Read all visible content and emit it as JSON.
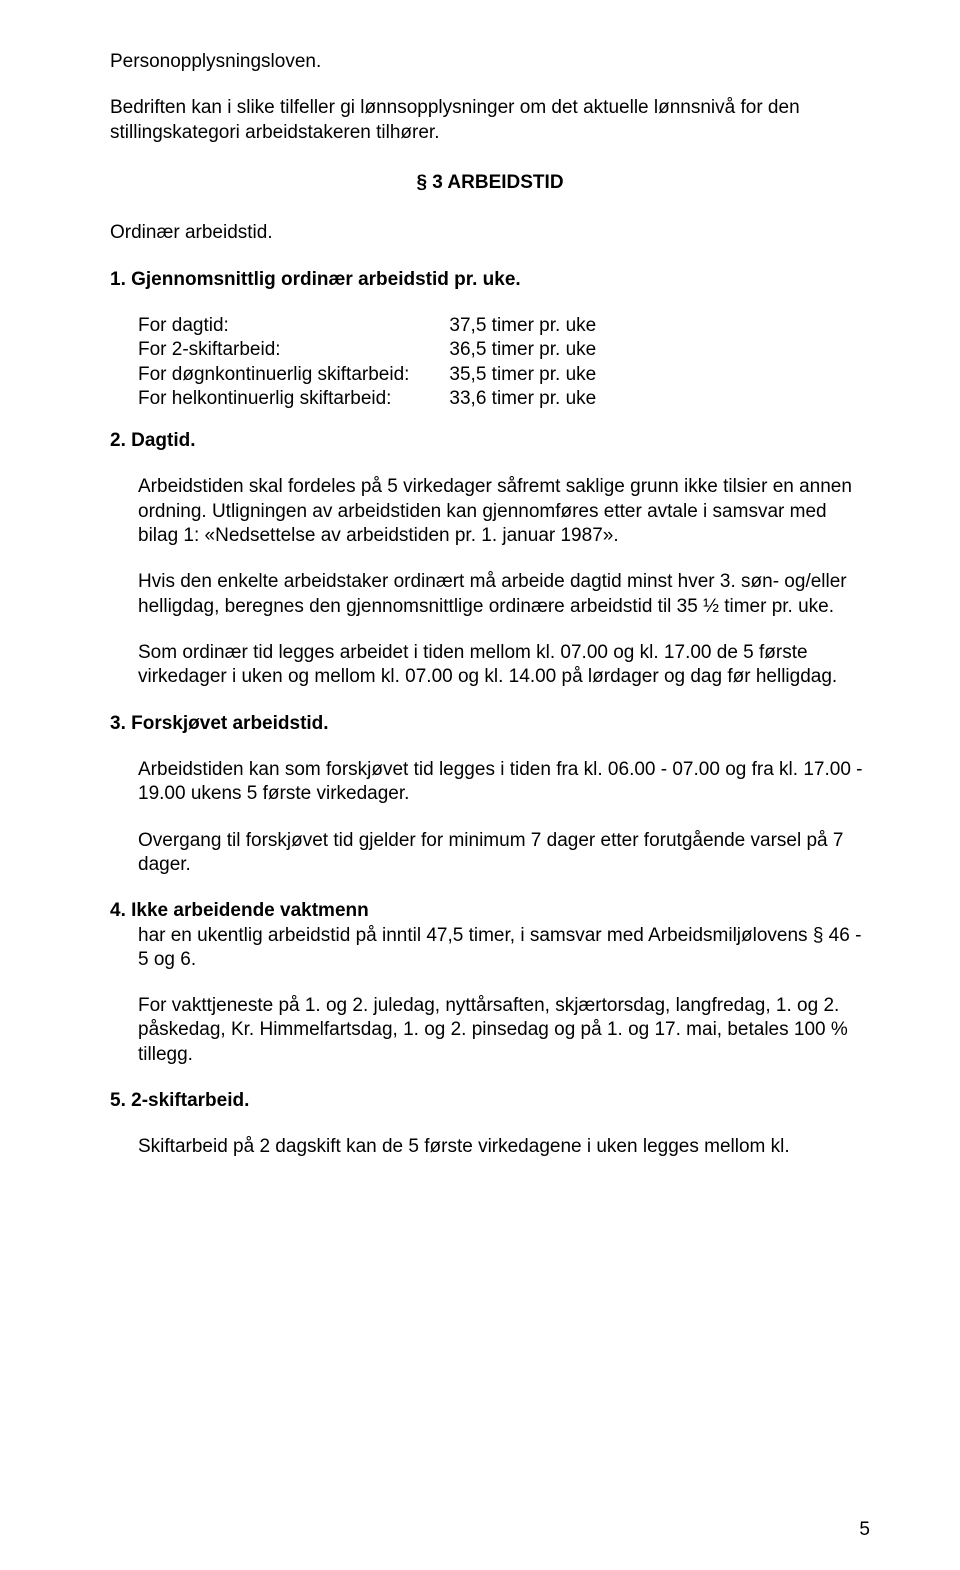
{
  "top_para1": "Personopplysningsloven.",
  "top_para2": "Bedriften kan i slike tilfeller gi lønnsopplysninger om det aktuelle lønnsnivå for den stillingskategori arbeidstakeren tilhører.",
  "section_heading": "§ 3 ARBEIDSTID",
  "ordinaer_line": "Ordinær arbeidstid.",
  "item1_heading": "1.  Gjennomsnittlig ordinær arbeidstid pr. uke.",
  "hours_table": {
    "rows": [
      {
        "label": "For dagtid:",
        "value": "37,5 timer pr. uke"
      },
      {
        "label": "For 2-skiftarbeid:",
        "value": "36,5 timer pr. uke"
      },
      {
        "label": "For døgnkontinuerlig skiftarbeid:",
        "value": "35,5 timer pr. uke"
      },
      {
        "label": "For helkontinuerlig skiftarbeid:",
        "value": "33,6 timer pr. uke"
      }
    ]
  },
  "item2_heading": "2.  Dagtid.",
  "item2_p1": "Arbeidstiden skal fordeles på 5 virkedager såfremt saklige grunn ikke tilsier en annen ordning. Utligningen av arbeidstiden kan gjennomføres etter avtale i samsvar med bilag 1: «Nedsettelse av arbeidstiden pr. 1. januar 1987».",
  "item2_p2": "Hvis den enkelte arbeidstaker ordinært må arbeide dagtid minst hver 3. søn- og/eller helligdag, beregnes den gjennomsnittlige ordinære arbeidstid til 35 ½ timer pr. uke.",
  "item2_p3": "Som ordinær tid legges arbeidet i tiden mellom kl. 07.00 og kl. 17.00 de 5 første virkedager i uken og mellom kl. 07.00 og kl. 14.00 på lørdager og dag før helligdag.",
  "item3_heading": "3.  Forskjøvet arbeidstid.",
  "item3_p1": "Arbeidstiden kan som forskjøvet tid legges i tiden fra kl. 06.00 - 07.00 og fra kl. 17.00 - 19.00 ukens 5 første virkedager.",
  "item3_p2": "Overgang til forskjøvet tid gjelder for minimum 7 dager etter forutgående varsel på 7 dager.",
  "item4_heading": "4.  Ikke arbeidende vaktmenn",
  "item4_p1": "har en ukentlig arbeidstid på inntil 47,5 timer, i samsvar med Arbeidsmiljølovens § 46 - 5 og 6.",
  "item4_p2": "For vakttjeneste på 1. og 2. juledag, nyttårsaften, skjærtorsdag, langfredag, 1. og 2. påskedag, Kr. Himmelfartsdag, 1. og 2. pinsedag og på 1. og 17. mai, betales 100 % tillegg.",
  "item5_heading": "5.  2-skiftarbeid.",
  "item5_p1": "Skiftarbeid på 2 dagskift kan de 5 første virkedagene i uken legges mellom kl.",
  "page_number": "5"
}
